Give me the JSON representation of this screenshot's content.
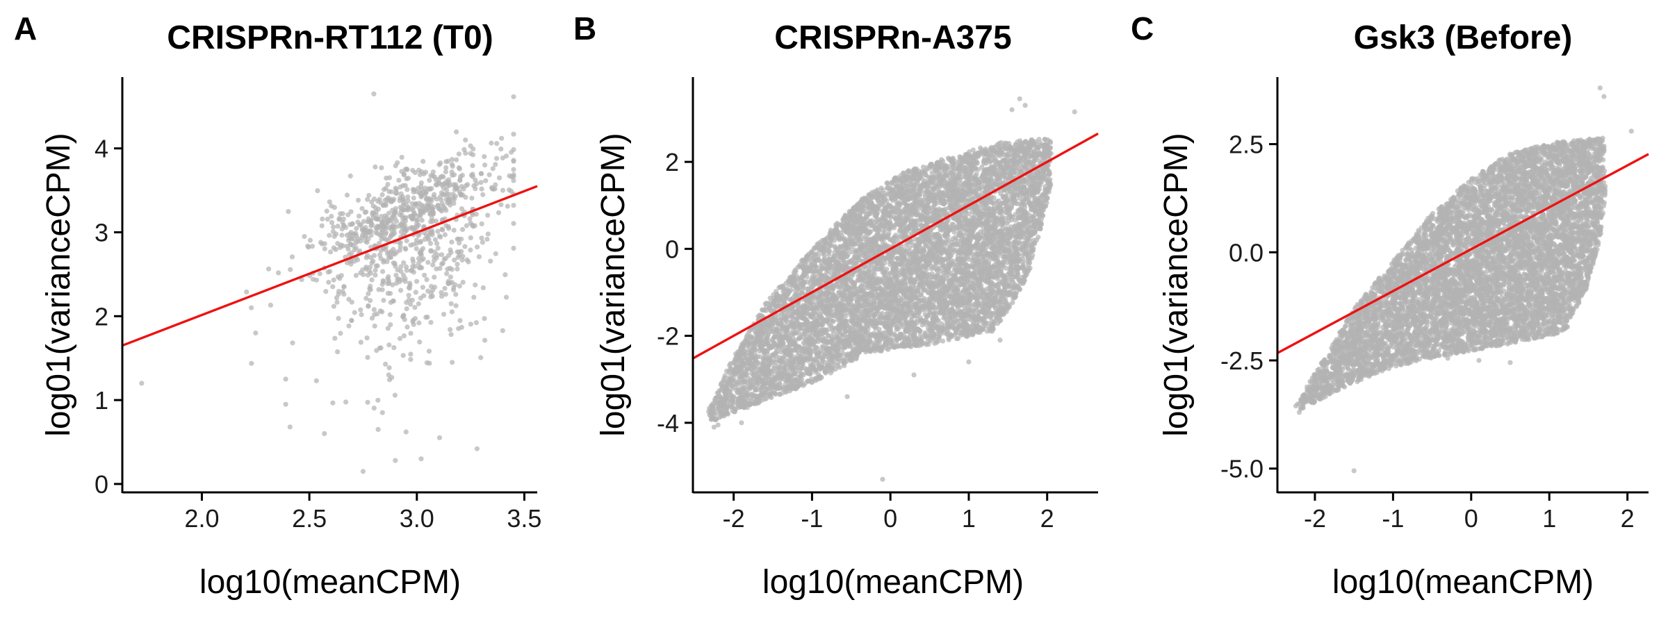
{
  "chart_data": [
    {
      "type": "scatter",
      "panel_label": "A",
      "title": "CRISPRn-RT112 (T0)",
      "xlabel": "log10(meanCPM)",
      "ylabel": "log01(varianceCPM)",
      "xlim": [
        1.63,
        3.56
      ],
      "ylim": [
        -0.1,
        4.85
      ],
      "xticks": [
        2.0,
        2.5,
        3.0,
        3.5
      ],
      "xtick_labels": [
        "2.0",
        "2.5",
        "3.0",
        "3.5"
      ],
      "yticks": [
        0,
        1,
        2,
        3,
        4
      ],
      "ytick_labels": [
        "0",
        "1",
        "2",
        "3",
        "4"
      ],
      "point_color": "#b3b3b3",
      "fit_line": {
        "color": "#ee1111",
        "x": [
          1.63,
          3.56
        ],
        "y": [
          1.65,
          3.55
        ]
      },
      "cloud": {
        "n": 950,
        "x_mean": 2.97,
        "x_sd": 0.22,
        "x_range": [
          2.1,
          3.45
        ],
        "slope": 1.0,
        "intercept": 0.15,
        "sd_top": 0.3,
        "sd_bottom": 0.75
      },
      "points": [
        {
          "x": 1.72,
          "y": 1.2
        },
        {
          "x": 2.25,
          "y": 1.8
        },
        {
          "x": 2.39,
          "y": 1.25
        },
        {
          "x": 2.39,
          "y": 0.95
        },
        {
          "x": 2.41,
          "y": 0.68
        },
        {
          "x": 2.57,
          "y": 0.6
        },
        {
          "x": 2.75,
          "y": 0.15
        },
        {
          "x": 2.82,
          "y": 0.65
        },
        {
          "x": 2.8,
          "y": 4.65
        },
        {
          "x": 2.9,
          "y": 0.28
        },
        {
          "x": 3.02,
          "y": 0.3
        },
        {
          "x": 3.28,
          "y": 0.42
        },
        {
          "x": 3.3,
          "y": 3.7
        },
        {
          "x": 3.25,
          "y": 4.03
        },
        {
          "x": 3.4,
          "y": 3.5
        },
        {
          "x": 2.95,
          "y": 0.62
        },
        {
          "x": 2.84,
          "y": 0.85
        },
        {
          "x": 2.23,
          "y": 2.1
        }
      ]
    },
    {
      "type": "scatter",
      "panel_label": "B",
      "title": "CRISPRn-A375",
      "xlabel": "log10(meanCPM)",
      "ylabel": "log01(varianceCPM)",
      "xlim": [
        -2.52,
        2.65
      ],
      "ylim": [
        -5.6,
        3.95
      ],
      "xticks": [
        -2,
        -1,
        0,
        1,
        2
      ],
      "xtick_labels": [
        "-2",
        "-1",
        "0",
        "1",
        "2"
      ],
      "yticks": [
        -4,
        -2,
        0,
        2
      ],
      "ytick_labels": [
        "-4",
        "-2",
        "0",
        "2"
      ],
      "point_color": "#b3b3b3",
      "fit_line": {
        "color": "#ee1111",
        "x": [
          -2.52,
          2.65
        ],
        "y": [
          -2.52,
          2.65
        ]
      },
      "region": [
        [
          -2.3,
          -4.0
        ],
        [
          -1.6,
          -3.5
        ],
        [
          -0.9,
          -3.0
        ],
        [
          -0.3,
          -2.4
        ],
        [
          0.5,
          -2.2
        ],
        [
          1.3,
          -1.9
        ],
        [
          1.55,
          -1.3
        ],
        [
          1.78,
          -0.5
        ],
        [
          1.95,
          0.7
        ],
        [
          2.05,
          1.5
        ],
        [
          2.05,
          2.55
        ],
        [
          1.4,
          2.45
        ],
        [
          0.8,
          2.15
        ],
        [
          0.15,
          1.75
        ],
        [
          -0.4,
          1.1
        ],
        [
          -1.0,
          0.0
        ],
        [
          -1.6,
          -1.25
        ],
        [
          -2.05,
          -2.65
        ],
        [
          -2.35,
          -3.8
        ]
      ],
      "cloud": {
        "n": 8000
      },
      "points": [
        {
          "x": -2.2,
          "y": -4.05
        },
        {
          "x": -2.25,
          "y": -4.1
        },
        {
          "x": -1.9,
          "y": -4.0
        },
        {
          "x": -0.1,
          "y": -5.3
        },
        {
          "x": 1.65,
          "y": 3.45
        },
        {
          "x": 1.72,
          "y": 3.3
        },
        {
          "x": 1.55,
          "y": 3.2
        },
        {
          "x": 2.35,
          "y": 3.15
        },
        {
          "x": -0.55,
          "y": -3.4
        },
        {
          "x": 0.3,
          "y": -2.9
        },
        {
          "x": 1.0,
          "y": -2.6
        },
        {
          "x": 1.4,
          "y": -2.1
        }
      ]
    },
    {
      "type": "scatter",
      "panel_label": "C",
      "title": "Gsk3 (Before)",
      "xlabel": "log10(meanCPM)",
      "ylabel": "log01(varianceCPM)",
      "xlim": [
        -2.48,
        2.27
      ],
      "ylim": [
        -5.55,
        4.05
      ],
      "xticks": [
        -2,
        -1,
        0,
        1,
        2
      ],
      "xtick_labels": [
        "-2",
        "-1",
        "0",
        "1",
        "2"
      ],
      "yticks": [
        -5.0,
        -2.5,
        0.0,
        2.5
      ],
      "ytick_labels": [
        "-5.0",
        "-2.5",
        "0.0",
        "2.5"
      ],
      "point_color": "#b3b3b3",
      "fit_line": {
        "color": "#ee1111",
        "x": [
          -2.48,
          2.27
        ],
        "y": [
          -2.33,
          2.27
        ]
      },
      "region": [
        [
          -2.2,
          -3.65
        ],
        [
          -1.6,
          -3.1
        ],
        [
          -1.0,
          -2.65
        ],
        [
          -0.4,
          -2.4
        ],
        [
          0.4,
          -2.15
        ],
        [
          1.2,
          -1.85
        ],
        [
          1.45,
          -1.0
        ],
        [
          1.65,
          0.3
        ],
        [
          1.72,
          1.3
        ],
        [
          1.7,
          2.65
        ],
        [
          1.1,
          2.55
        ],
        [
          0.5,
          2.3
        ],
        [
          0.0,
          1.7
        ],
        [
          -0.5,
          0.9
        ],
        [
          -1.0,
          -0.2
        ],
        [
          -1.5,
          -1.3
        ],
        [
          -1.9,
          -2.5
        ],
        [
          -2.25,
          -3.55
        ]
      ],
      "cloud": {
        "n": 8000
      },
      "points": [
        {
          "x": -2.2,
          "y": -3.7
        },
        {
          "x": -2.15,
          "y": -3.6
        },
        {
          "x": -1.5,
          "y": -5.05
        },
        {
          "x": 1.65,
          "y": 3.8
        },
        {
          "x": 1.7,
          "y": 3.6
        },
        {
          "x": 2.05,
          "y": 2.8
        },
        {
          "x": 0.5,
          "y": -2.55
        },
        {
          "x": 0.1,
          "y": -2.5
        },
        {
          "x": -0.3,
          "y": -2.45
        }
      ]
    }
  ]
}
